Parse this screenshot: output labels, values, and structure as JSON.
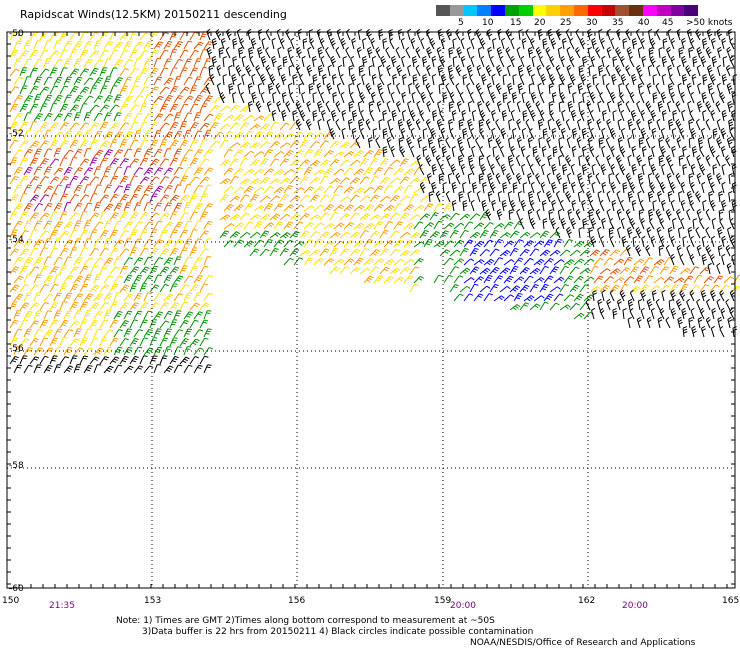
{
  "title": "Rapidscat Winds(12.5KM) 20150211 descending",
  "legend": {
    "colors": [
      "#555555",
      "#999999",
      "#00c8ff",
      "#0080ff",
      "#0000ff",
      "#00a000",
      "#00d000",
      "#ffff00",
      "#ffd000",
      "#ffa000",
      "#ff6a00",
      "#ff0000",
      "#c80000",
      "#a05030",
      "#6b3010",
      "#ff00ff",
      "#c000c0",
      "#8000a0",
      "#4a007a"
    ],
    "labels": [
      "5",
      "10",
      "15",
      "20",
      "25",
      "30",
      "35",
      "40",
      "45",
      ">50 knots"
    ]
  },
  "axes": {
    "lon_labels": [
      "150",
      "153",
      "156",
      "159",
      "162",
      "165"
    ],
    "lat_labels": [
      "-50",
      "-52",
      "-54",
      "-56",
      "-58",
      "-60"
    ],
    "time_labels": [
      "21:35",
      "20:00",
      "20:00"
    ]
  },
  "notes": [
    "Note: 1) Times are GMT 2)Times along bottom correspond to measurement at ~50S",
    "3)Data buffer is 22 hrs from 20150211 4) Black circles indicate possible contamination"
  ],
  "credit": "NOAA/NESDIS/Office of Research and Applications",
  "colors": {
    "black": "#000000",
    "yellow": "#ffe000",
    "orange": "#ff9a00",
    "dark_orange": "#e05000",
    "green": "#009000",
    "blue": "#0000ff",
    "purple": "#9000a0",
    "time": "#7a007a"
  }
}
